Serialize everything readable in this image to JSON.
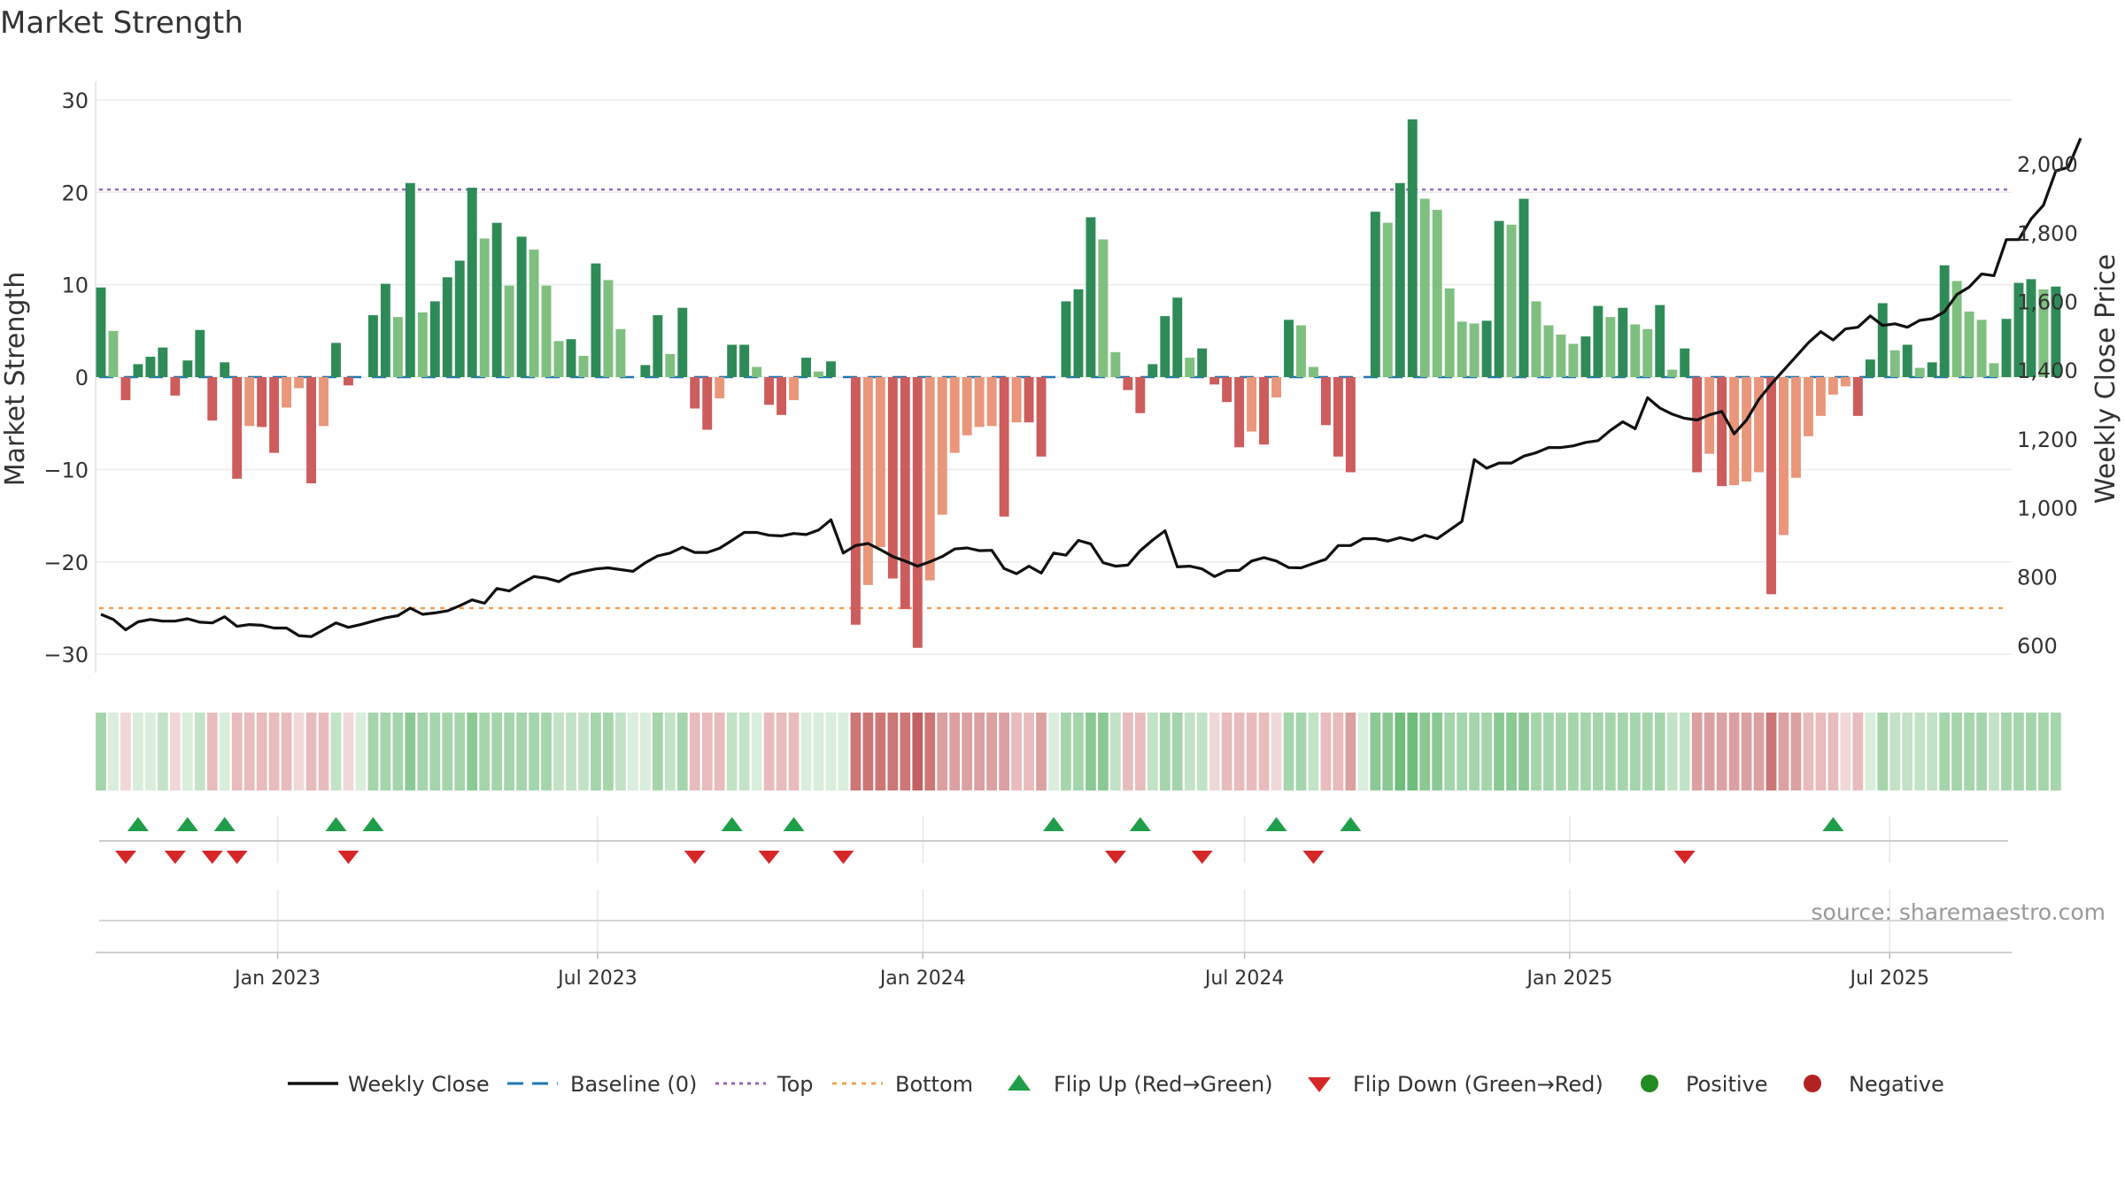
{
  "chart_data": {
    "type": "bar",
    "title": "Market Strength",
    "ylabel": "Market Strength",
    "y2label": "Weekly Close Price",
    "ylim": [
      -32,
      32
    ],
    "y2lim": [
      520,
      2240
    ],
    "yticks": [
      -30,
      -20,
      -10,
      0,
      10,
      20,
      30
    ],
    "ytick_labels": [
      "−30",
      "−20",
      "−10",
      "0",
      "10",
      "20",
      "30"
    ],
    "y2ticks": [
      600,
      800,
      1000,
      1200,
      1400,
      1600,
      1800,
      2000
    ],
    "y2tick_labels": [
      "600",
      "800",
      "1,000",
      "1,200",
      "1,400",
      "1,600",
      "1,800",
      "2,000"
    ],
    "xlim": [
      "2022-09-20",
      "2025-09-08"
    ],
    "xtick_dates": [
      "2023-01-01",
      "2023-07-01",
      "2024-01-01",
      "2024-07-01",
      "2025-01-01",
      "2025-07-01"
    ],
    "xtick_labels": [
      "Jan 2023",
      "Jul 2023",
      "Jan 2024",
      "Jul 2024",
      "Jan 2025",
      "Jul 2025"
    ],
    "start_date": "2022-09-23",
    "top_line": 20.3,
    "bottom_line": -25,
    "grid": true,
    "legend_position": "bottom",
    "source": "source: sharemaestro.com",
    "strength": [
      9.7,
      5,
      -2.5,
      1.4,
      2.2,
      3.2,
      -2,
      1.8,
      5.1,
      -4.7,
      1.6,
      -11,
      -5.3,
      -5.4,
      -8.2,
      -3.3,
      -1.2,
      -11.5,
      -5.3,
      3.7,
      -0.9,
      0,
      6.7,
      10.1,
      6.5,
      21,
      7,
      8.2,
      10.8,
      12.6,
      20.5,
      15,
      16.7,
      9.9,
      15.2,
      13.8,
      9.9,
      3.9,
      4.1,
      2.3,
      12.3,
      10.5,
      5.2,
      0,
      1.3,
      6.7,
      2.5,
      7.5,
      -3.4,
      -5.7,
      -2.3,
      3.5,
      3.5,
      1.1,
      -3,
      -4.1,
      -2.5,
      2.1,
      0.6,
      1.7,
      0,
      -26.8,
      -22.5,
      -18.4,
      -21.8,
      -25.1,
      -29.3,
      -22,
      -14.9,
      -8.2,
      -6.3,
      -5.4,
      -5.3,
      -15.1,
      -4.9,
      -4.9,
      -8.6,
      0,
      8.2,
      9.5,
      17.3,
      14.9,
      2.7,
      -1.4,
      -3.9,
      1.4,
      6.6,
      8.6,
      2.1,
      3.1,
      -0.8,
      -2.7,
      -7.6,
      -5.9,
      -7.3,
      -2.2,
      6.2,
      5.6,
      1.1,
      -5.2,
      -8.6,
      -10.3,
      0,
      17.9,
      16.7,
      21,
      27.9,
      19.3,
      18.1,
      9.6,
      6,
      5.8,
      6.1,
      16.9,
      16.5,
      19.3,
      8.2,
      5.6,
      4.6,
      3.6,
      4.4,
      7.7,
      6.5,
      7.5,
      5.7,
      5.2,
      7.8,
      0.8,
      3.1,
      -10.3,
      -8.3,
      -11.8,
      -11.7,
      -11.3,
      -10.3,
      -23.5,
      -17.1,
      -10.9,
      -6.4,
      -4.2,
      -1.9,
      -1,
      -4.2,
      1.9,
      8,
      2.9,
      3.5,
      1,
      1.6,
      12.1,
      10.4,
      7.1,
      6.2,
      1.5,
      6.3,
      10.2,
      10.6,
      9.5,
      9.8
    ],
    "weekly_close": [
      690,
      675,
      645,
      668,
      675,
      670,
      670,
      677,
      667,
      665,
      683,
      655,
      660,
      658,
      650,
      650,
      628,
      625,
      645,
      665,
      652,
      660,
      670,
      680,
      686,
      708,
      690,
      694,
      700,
      715,
      732,
      722,
      765,
      758,
      780,
      800,
      795,
      785,
      806,
      815,
      822,
      825,
      820,
      815,
      840,
      860,
      868,
      885,
      870,
      870,
      882,
      905,
      928,
      928,
      920,
      918,
      925,
      922,
      935,
      965,
      868,
      890,
      896,
      878,
      858,
      845,
      830,
      843,
      858,
      880,
      883,
      875,
      876,
      823,
      808,
      830,
      810,
      868,
      862,
      905,
      895,
      840,
      830,
      833,
      875,
      906,
      933,
      828,
      830,
      822,
      800,
      817,
      818,
      845,
      855,
      845,
      826,
      825,
      838,
      850,
      890,
      890,
      910,
      910,
      903,
      913,
      905,
      920,
      910,
      935,
      960,
      1140,
      1115,
      1130,
      1130,
      1150,
      1160,
      1175,
      1175,
      1180,
      1190,
      1195,
      1225,
      1250,
      1230,
      1320,
      1290,
      1272,
      1260,
      1255,
      1270,
      1280,
      1215,
      1255,
      1315,
      1360,
      1400,
      1440,
      1480,
      1512,
      1488,
      1520,
      1525,
      1558,
      1530,
      1535,
      1525,
      1545,
      1550,
      1570,
      1620,
      1642,
      1680,
      1675,
      1780,
      1780,
      1840,
      1880,
      1980,
      1990,
      2075
    ],
    "heat_levels": [
      3,
      1,
      -1,
      1,
      1,
      2,
      -1,
      1,
      2,
      -2,
      1,
      -2,
      -2,
      -2,
      -2,
      -2,
      -1,
      -2,
      -2,
      2,
      -1,
      1,
      3,
      3,
      3,
      4,
      3,
      3,
      3,
      3,
      4,
      3,
      3,
      3,
      3,
      3,
      3,
      2,
      2,
      2,
      3,
      3,
      2,
      1,
      1,
      3,
      2,
      3,
      -2,
      -2,
      -2,
      2,
      2,
      1,
      -2,
      -2,
      -2,
      1,
      1,
      1,
      1,
      -4,
      -4,
      -4,
      -4,
      -4,
      -5,
      -4,
      -3,
      -3,
      -3,
      -3,
      -3,
      -3,
      -2,
      -2,
      -3,
      1,
      3,
      3,
      4,
      4,
      2,
      -2,
      -2,
      2,
      3,
      3,
      2,
      2,
      -1,
      -2,
      -2,
      -2,
      -2,
      -1,
      3,
      3,
      2,
      -2,
      -2,
      -3,
      1,
      4,
      4,
      5,
      5,
      4,
      4,
      3,
      3,
      3,
      3,
      4,
      4,
      4,
      3,
      3,
      3,
      3,
      3,
      3,
      3,
      3,
      3,
      3,
      3,
      2,
      2,
      -3,
      -3,
      -3,
      -3,
      -3,
      -3,
      -4,
      -3,
      -3,
      -2,
      -2,
      -2,
      -1,
      -2,
      1,
      3,
      2,
      2,
      2,
      2,
      3,
      3,
      3,
      3,
      2,
      3,
      3,
      3,
      3,
      3
    ],
    "flip_up_weeks": [
      3,
      7,
      10,
      19,
      22,
      51,
      56,
      77,
      84,
      95,
      101,
      140
    ],
    "flip_down_weeks": [
      2,
      6,
      9,
      11,
      20,
      48,
      54,
      60,
      82,
      89,
      98,
      128
    ],
    "legend": [
      "Weekly Close",
      "Baseline (0)",
      "Top",
      "Bottom",
      "Flip Up (Red→Green)",
      "Flip Down (Green→Red)",
      "Positive",
      "Negative"
    ],
    "colors": {
      "close_line": "#111111",
      "baseline": "#1f77b4",
      "top": "#9467bd",
      "bottom": "#f0a05a",
      "flip_up": "#1f9e4a",
      "flip_down": "#d62728",
      "positive": "#228b22",
      "negative": "#b22222",
      "bar_pos_dark": "#2e8b57",
      "bar_pos_light": "#7fbf7f",
      "bar_neg_dark": "#cd5c5c",
      "bar_neg_light": "#e9967a"
    }
  }
}
